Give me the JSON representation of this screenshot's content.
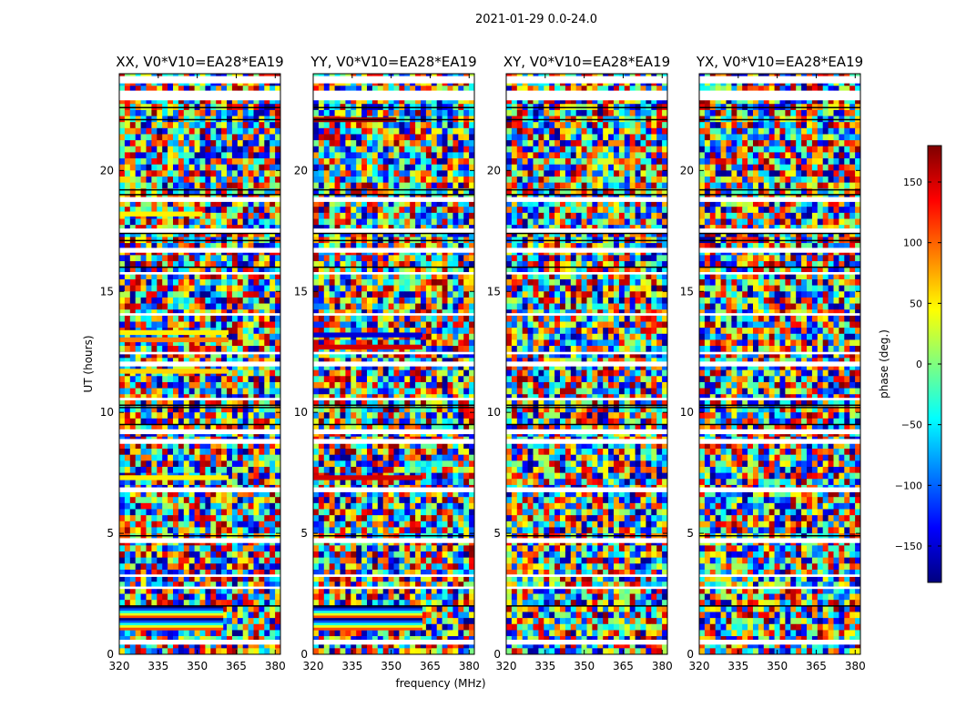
{
  "suptitle": "2021-01-29 0.0-24.0",
  "chart_data": [
    {
      "type": "heatmap",
      "title": "XX, V0*V10=EA28*EA19",
      "xlabel": "",
      "ylabel": "UT (hours)",
      "xlim": [
        320,
        382
      ],
      "ylim": [
        0,
        24
      ],
      "xticks": [
        320,
        335,
        350,
        365,
        380
      ],
      "yticks": [
        0,
        5,
        10,
        15,
        20
      ],
      "value_range": [
        -180,
        180
      ],
      "colormap": "jet",
      "coherent_bands": [
        {
          "ut": [
            1.0,
            2.0
          ],
          "freq": [
            320,
            360
          ],
          "phase": "fringes"
        },
        {
          "ut": [
            7.2,
            7.4
          ],
          "freq": [
            320,
            362
          ],
          "phase": 50
        },
        {
          "ut": [
            11.6,
            11.8
          ],
          "freq": [
            320,
            362
          ],
          "phase": 60
        },
        {
          "ut": [
            12.9,
            13.1
          ],
          "freq": [
            320,
            362
          ],
          "phase": 90
        },
        {
          "ut": [
            13.2,
            13.4
          ],
          "freq": [
            320,
            362
          ],
          "phase": 50
        },
        {
          "ut": [
            18.1,
            18.3
          ],
          "freq": [
            320,
            352
          ],
          "phase": 50
        }
      ]
    },
    {
      "type": "heatmap",
      "title": "YY, V0*V10=EA28*EA19",
      "xlabel": "frequency (MHz)",
      "ylabel": "",
      "xlim": [
        320,
        382
      ],
      "ylim": [
        0,
        24
      ],
      "xticks": [
        320,
        335,
        350,
        365,
        380
      ],
      "yticks": [
        0,
        5,
        10,
        15,
        20
      ],
      "value_range": [
        -180,
        180
      ],
      "colormap": "jet",
      "coherent_bands": [
        {
          "ut": [
            1.0,
            2.0
          ],
          "freq": [
            320,
            362
          ],
          "phase": "fringes"
        },
        {
          "ut": [
            7.2,
            7.4
          ],
          "freq": [
            320,
            362
          ],
          "phase": 150
        },
        {
          "ut": [
            12.6,
            12.8
          ],
          "freq": [
            320,
            362
          ],
          "phase": 150
        },
        {
          "ut": [
            13.1,
            13.3
          ],
          "freq": [
            320,
            362
          ],
          "phase": -150
        },
        {
          "ut": [
            22.0,
            22.2
          ],
          "freq": [
            320,
            352
          ],
          "phase": 170
        }
      ]
    },
    {
      "type": "heatmap",
      "title": "XY, V0*V10=EA28*EA19",
      "xlabel": "",
      "ylabel": "",
      "xlim": [
        320,
        382
      ],
      "ylim": [
        0,
        24
      ],
      "xticks": [
        320,
        335,
        350,
        365,
        380
      ],
      "yticks": [
        0,
        5,
        10,
        15,
        20
      ],
      "value_range": [
        -180,
        180
      ],
      "colormap": "jet",
      "coherent_bands": []
    },
    {
      "type": "heatmap",
      "title": "YX, V0*V10=EA28*EA19",
      "xlabel": "",
      "ylabel": "",
      "xlim": [
        320,
        382
      ],
      "ylim": [
        0,
        24
      ],
      "xticks": [
        320,
        335,
        350,
        365,
        380
      ],
      "yticks": [
        0,
        5,
        10,
        15,
        20
      ],
      "value_range": [
        -180,
        180
      ],
      "colormap": "jet",
      "coherent_bands": []
    }
  ],
  "colorbar": {
    "label": "phase (deg.)",
    "ticks": [
      150,
      100,
      50,
      0,
      -50,
      -100,
      -150
    ],
    "tick_labels": [
      "150",
      "100",
      "50",
      "0",
      "−50",
      "−100",
      "−150"
    ],
    "range": [
      -180,
      180
    ]
  },
  "colors": {
    "jet_stops": [
      "#00007f",
      "#0000ff",
      "#007fff",
      "#00ffff",
      "#7fff7f",
      "#ffff00",
      "#ff7f00",
      "#ff0000",
      "#7f0000"
    ],
    "flagged": "#ffffff",
    "flag_line": "#000000"
  }
}
